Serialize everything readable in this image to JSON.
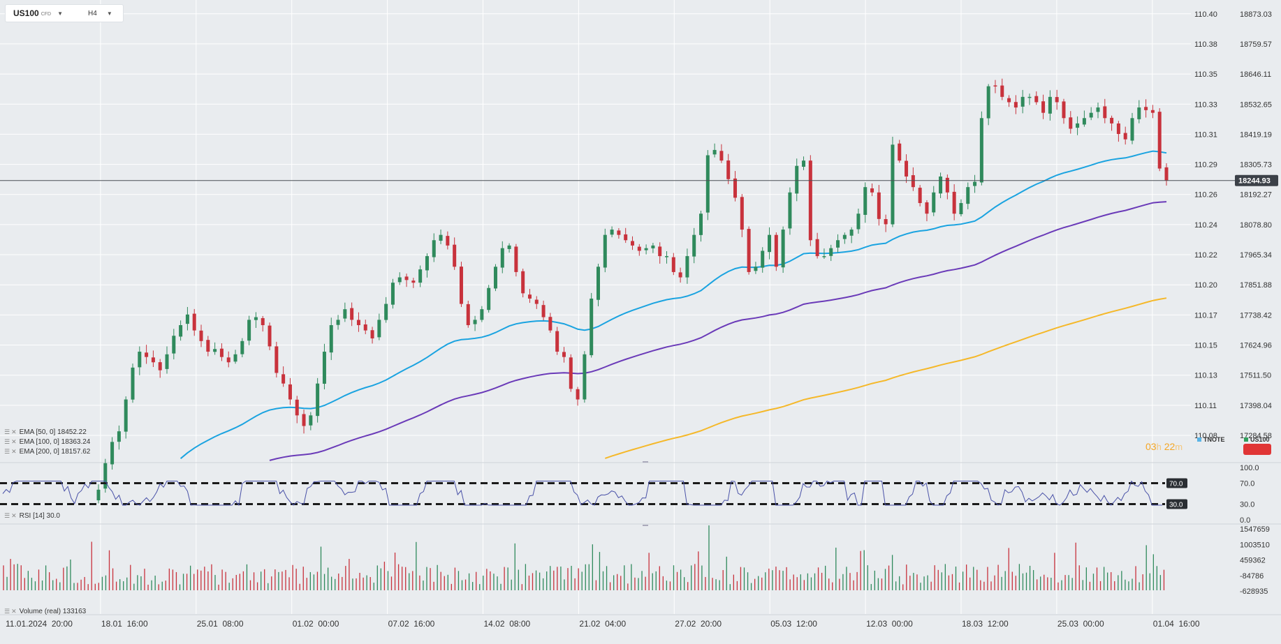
{
  "header": {
    "symbol": "US100",
    "symbol_sub": "CFD",
    "timeframe": "H4",
    "dropdown_icon": "caret-down-icon"
  },
  "colors": {
    "bull": "#2f8a5c",
    "bear": "#c8323c",
    "ema50": "#1aa3e0",
    "ema100": "#6a3ab8",
    "ema200": "#f5b829",
    "rsi": "#4a52a8",
    "tnote": "#5ab4e6",
    "us100": "#2fa05c",
    "countdown": "#f5a623"
  },
  "indicators": {
    "ema50": "EMA  [50,  0]  18452.22",
    "ema100": "EMA  [100,  0]  18363.24",
    "ema200": "EMA  [200,  0]  18157.62",
    "rsi": "RSI  [14]  30.0",
    "volume": "Volume  (real)  133163"
  },
  "countdown": {
    "hours": "03",
    "h_unit": "h",
    "minutes": "22",
    "m_unit": "m"
  },
  "legend": {
    "tnote": "TNOTE",
    "us100": "US100"
  },
  "chart_data": {
    "type": "candlestick",
    "symbol": "US100",
    "timeframe": "H4",
    "x_ticks": [
      "11.01.2024  20:00",
      "18.01  16:00",
      "25.01  08:00",
      "01.02  00:00",
      "07.02  16:00",
      "14.02  08:00",
      "21.02  04:00",
      "27.02  20:00",
      "05.03  12:00",
      "12.03  00:00",
      "18.03  12:00",
      "25.03  00:00",
      "01.04  16:00"
    ],
    "y_ticks_right": [
      "18873.03",
      "18759.57",
      "18646.11",
      "18532.65",
      "18419.19",
      "18305.73",
      "18192.27",
      "18078.80",
      "17965.34",
      "17851.88",
      "17738.42",
      "17624.96",
      "17511.50",
      "17398.04",
      "17284.58"
    ],
    "y_ticks_left": [
      "110.40",
      "110.38",
      "110.35",
      "110.33",
      "110.31",
      "110.29",
      "110.26",
      "110.24",
      "110.22",
      "110.20",
      "110.17",
      "110.15",
      "110.13",
      "110.11",
      "110.08"
    ],
    "ylim": [
      17190,
      18925
    ],
    "current_price": "18244.93",
    "closes": [
      17080,
      17180,
      17260,
      17300,
      17420,
      17540,
      17600,
      17580,
      17560,
      17530,
      17590,
      17660,
      17700,
      17740,
      17680,
      17640,
      17600,
      17610,
      17580,
      17560,
      17590,
      17640,
      17720,
      17730,
      17700,
      17620,
      17520,
      17480,
      17420,
      17360,
      17320,
      17360,
      17480,
      17600,
      17700,
      17720,
      17760,
      17720,
      17700,
      17680,
      17650,
      17720,
      17780,
      17860,
      17880,
      17870,
      17860,
      17910,
      17960,
      18020,
      18040,
      18000,
      17920,
      17780,
      17700,
      17720,
      17760,
      17840,
      17920,
      17990,
      18000,
      17900,
      17820,
      17800,
      17780,
      17730,
      17680,
      17600,
      17580,
      17460,
      17420,
      17590,
      17800,
      17920,
      18040,
      18060,
      18040,
      18020,
      18000,
      17980,
      17990,
      18000,
      17960,
      17960,
      17900,
      17880,
      17960,
      18040,
      18120,
      18340,
      18360,
      18320,
      18250,
      18180,
      18060,
      17900,
      17920,
      17980,
      18040,
      17920,
      18060,
      18200,
      18300,
      18320,
      18020,
      17960,
      17960,
      17990,
      18020,
      18040,
      18060,
      18120,
      18220,
      18200,
      18100,
      18080,
      18380,
      18320,
      18260,
      18220,
      18160,
      18120,
      18200,
      18260,
      18200,
      18120,
      18160,
      18220,
      18240,
      18480,
      18600,
      18600,
      18560,
      18540,
      18520,
      18560,
      18560,
      18540,
      18500,
      18560,
      18540,
      18480,
      18440,
      18460,
      18480,
      18500,
      18520,
      18480,
      18460,
      18420,
      18400,
      18480,
      18520,
      18510,
      18500,
      18290,
      18244.93
    ],
    "ema": [
      {
        "name": "EMA [50, 0]",
        "value": 18452.22
      },
      {
        "name": "EMA [100, 0]",
        "value": 18363.24
      },
      {
        "name": "EMA [200, 0]",
        "value": 18157.62
      }
    ],
    "rsi": {
      "period": 14,
      "levels": [
        70,
        30
      ],
      "axis": [
        "100.0",
        "70.0",
        "30.0",
        "0.0"
      ],
      "level_labels": [
        "70.0",
        "30.0"
      ]
    },
    "volume": {
      "last": 133163,
      "axis": [
        "1547659",
        "1003510",
        "459362",
        "-84786",
        "-628935"
      ]
    }
  }
}
